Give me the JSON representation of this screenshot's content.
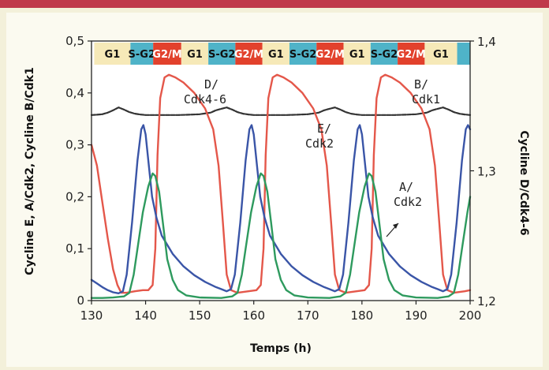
{
  "chart_data": {
    "type": "line",
    "xlabel": "Temps (h)",
    "ylabel_left": "Cycline E, A/Cdk2, Cycline B/Cdk1",
    "ylabel_right": "Cycline D/Cdk4-6",
    "xlim": [
      130,
      200
    ],
    "ylim_left": [
      0,
      0.5
    ],
    "ylim_right": [
      1.2,
      1.4
    ],
    "x_ticks": [
      "130",
      "140",
      "150",
      "160",
      "170",
      "180",
      "190",
      "200"
    ],
    "y_ticks_left": [
      "0",
      "0,1",
      "0,2",
      "0,3",
      "0,4",
      "0,5"
    ],
    "y_ticks_right": [
      "1,2",
      "1,3",
      "1,4"
    ],
    "phases": [
      {
        "label": "G1",
        "start": 130.5,
        "end": 137.2,
        "color": "#f6e9b8",
        "text_color": "#111111"
      },
      {
        "label": "S-G2",
        "start": 137.2,
        "end": 141.4,
        "color": "#4fb3c8",
        "text_color": "#111111"
      },
      {
        "label": "G2/M",
        "start": 141.4,
        "end": 146.6,
        "color": "#e2412c",
        "text_color": "#ffffff"
      },
      {
        "label": "G1",
        "start": 146.6,
        "end": 151.6,
        "color": "#f6e9b8",
        "text_color": "#111111"
      },
      {
        "label": "S-G2",
        "start": 151.6,
        "end": 156.6,
        "color": "#4fb3c8",
        "text_color": "#111111"
      },
      {
        "label": "G2/M",
        "start": 156.6,
        "end": 161.6,
        "color": "#e2412c",
        "text_color": "#ffffff"
      },
      {
        "label": "G1",
        "start": 161.6,
        "end": 166.6,
        "color": "#f6e9b8",
        "text_color": "#111111"
      },
      {
        "label": "S-G2",
        "start": 166.6,
        "end": 171.6,
        "color": "#4fb3c8",
        "text_color": "#111111"
      },
      {
        "label": "G2/M",
        "start": 171.6,
        "end": 176.6,
        "color": "#e2412c",
        "text_color": "#ffffff"
      },
      {
        "label": "G1",
        "start": 176.6,
        "end": 181.6,
        "color": "#f6e9b8",
        "text_color": "#111111"
      },
      {
        "label": "S-G2",
        "start": 181.6,
        "end": 186.6,
        "color": "#4fb3c8",
        "text_color": "#111111"
      },
      {
        "label": "G2/M",
        "start": 186.6,
        "end": 191.6,
        "color": "#e2412c",
        "text_color": "#ffffff"
      },
      {
        "label": "G1",
        "start": 191.6,
        "end": 197.6,
        "color": "#f6e9b8",
        "text_color": "#111111"
      },
      {
        "label": "",
        "start": 197.6,
        "end": 200,
        "color": "#4fb3c8",
        "text_color": "#111111"
      }
    ],
    "annotations": [
      {
        "lines": [
          "D/",
          "Cdk4-6"
        ]
      },
      {
        "lines": [
          "E/",
          "Cdk2"
        ]
      },
      {
        "lines": [
          "B/",
          "Cdk1"
        ]
      },
      {
        "lines": [
          "A/",
          "Cdk2"
        ]
      }
    ],
    "series": [
      {
        "name": "Cycline D/Cdk4-6",
        "axis": "right",
        "color": "#333333",
        "points": [
          [
            130,
            1.343
          ],
          [
            131,
            1.3432
          ],
          [
            132,
            1.3436
          ],
          [
            133,
            1.3448
          ],
          [
            134,
            1.3466
          ],
          [
            135,
            1.3488
          ],
          [
            136,
            1.3472
          ],
          [
            137,
            1.3452
          ],
          [
            138,
            1.344
          ],
          [
            139,
            1.3434
          ],
          [
            140,
            1.343
          ],
          [
            142,
            1.343
          ],
          [
            144,
            1.343
          ],
          [
            146,
            1.343
          ],
          [
            148,
            1.3432
          ],
          [
            150,
            1.3436
          ],
          [
            152,
            1.3448
          ],
          [
            153,
            1.3466
          ],
          [
            154,
            1.3478
          ],
          [
            155,
            1.3488
          ],
          [
            156,
            1.3472
          ],
          [
            157,
            1.3452
          ],
          [
            158,
            1.344
          ],
          [
            159,
            1.3434
          ],
          [
            160,
            1.343
          ],
          [
            164,
            1.343
          ],
          [
            166,
            1.343
          ],
          [
            168,
            1.3432
          ],
          [
            170,
            1.3436
          ],
          [
            172,
            1.3448
          ],
          [
            173,
            1.3466
          ],
          [
            174,
            1.3478
          ],
          [
            175,
            1.3488
          ],
          [
            176,
            1.3472
          ],
          [
            177,
            1.3452
          ],
          [
            178,
            1.344
          ],
          [
            179,
            1.3434
          ],
          [
            180,
            1.343
          ],
          [
            184,
            1.343
          ],
          [
            186,
            1.343
          ],
          [
            188,
            1.3432
          ],
          [
            190,
            1.3436
          ],
          [
            192,
            1.3448
          ],
          [
            193,
            1.3466
          ],
          [
            194,
            1.3478
          ],
          [
            195,
            1.3488
          ],
          [
            196,
            1.3472
          ],
          [
            197,
            1.3452
          ],
          [
            198,
            1.344
          ],
          [
            199,
            1.3434
          ],
          [
            200,
            1.343
          ]
        ]
      },
      {
        "name": "Cycline B/Cdk1",
        "axis": "left",
        "color": "#e4574a",
        "points": [
          [
            130,
            0.3
          ],
          [
            131,
            0.26
          ],
          [
            132,
            0.19
          ],
          [
            133,
            0.12
          ],
          [
            134,
            0.06
          ],
          [
            134.8,
            0.03
          ],
          [
            135.5,
            0.015
          ],
          [
            136.5,
            0.015
          ],
          [
            138,
            0.018
          ],
          [
            139.5,
            0.02
          ],
          [
            140.5,
            0.02
          ],
          [
            141.3,
            0.03
          ],
          [
            141.8,
            0.1
          ],
          [
            142.2,
            0.28
          ],
          [
            142.7,
            0.39
          ],
          [
            143.5,
            0.43
          ],
          [
            144.3,
            0.435
          ],
          [
            145.5,
            0.43
          ],
          [
            147,
            0.42
          ],
          [
            149,
            0.4
          ],
          [
            151,
            0.37
          ],
          [
            152.5,
            0.33
          ],
          [
            153.5,
            0.26
          ],
          [
            154.3,
            0.15
          ],
          [
            155,
            0.05
          ],
          [
            155.8,
            0.02
          ],
          [
            157,
            0.015
          ],
          [
            159,
            0.018
          ],
          [
            160.5,
            0.02
          ],
          [
            161.3,
            0.03
          ],
          [
            161.8,
            0.1
          ],
          [
            162.2,
            0.28
          ],
          [
            162.7,
            0.39
          ],
          [
            163.5,
            0.43
          ],
          [
            164.3,
            0.435
          ],
          [
            165.5,
            0.43
          ],
          [
            167,
            0.42
          ],
          [
            169,
            0.4
          ],
          [
            171,
            0.37
          ],
          [
            172.5,
            0.33
          ],
          [
            173.5,
            0.26
          ],
          [
            174.3,
            0.15
          ],
          [
            175,
            0.05
          ],
          [
            175.8,
            0.02
          ],
          [
            177,
            0.015
          ],
          [
            179,
            0.018
          ],
          [
            180.5,
            0.02
          ],
          [
            181.3,
            0.03
          ],
          [
            181.8,
            0.1
          ],
          [
            182.2,
            0.28
          ],
          [
            182.7,
            0.39
          ],
          [
            183.5,
            0.43
          ],
          [
            184.3,
            0.435
          ],
          [
            185.5,
            0.43
          ],
          [
            187,
            0.42
          ],
          [
            189,
            0.4
          ],
          [
            191,
            0.37
          ],
          [
            192.5,
            0.33
          ],
          [
            193.5,
            0.26
          ],
          [
            194.3,
            0.15
          ],
          [
            195,
            0.05
          ],
          [
            195.8,
            0.02
          ],
          [
            197,
            0.015
          ],
          [
            199,
            0.018
          ],
          [
            200,
            0.02
          ]
        ]
      },
      {
        "name": "Cycline E/Cdk2",
        "axis": "left",
        "color": "#3a55a7",
        "points": [
          [
            130,
            0.04
          ],
          [
            131,
            0.033
          ],
          [
            132,
            0.026
          ],
          [
            133,
            0.02
          ],
          [
            134,
            0.016
          ],
          [
            135,
            0.014
          ],
          [
            135.8,
            0.018
          ],
          [
            136.5,
            0.05
          ],
          [
            137.5,
            0.15
          ],
          [
            138.5,
            0.27
          ],
          [
            139.2,
            0.33
          ],
          [
            139.6,
            0.338
          ],
          [
            140,
            0.32
          ],
          [
            140.5,
            0.27
          ],
          [
            141.2,
            0.2
          ],
          [
            142,
            0.16
          ],
          [
            143,
            0.125
          ],
          [
            145,
            0.09
          ],
          [
            147,
            0.066
          ],
          [
            149,
            0.049
          ],
          [
            151,
            0.036
          ],
          [
            153,
            0.026
          ],
          [
            154,
            0.022
          ],
          [
            155,
            0.018
          ],
          [
            155.8,
            0.022
          ],
          [
            156.5,
            0.05
          ],
          [
            157.5,
            0.15
          ],
          [
            158.5,
            0.27
          ],
          [
            159.2,
            0.33
          ],
          [
            159.6,
            0.338
          ],
          [
            160,
            0.32
          ],
          [
            160.5,
            0.27
          ],
          [
            161.2,
            0.2
          ],
          [
            162,
            0.16
          ],
          [
            163,
            0.125
          ],
          [
            165,
            0.09
          ],
          [
            167,
            0.066
          ],
          [
            169,
            0.049
          ],
          [
            171,
            0.036
          ],
          [
            173,
            0.026
          ],
          [
            174,
            0.022
          ],
          [
            175,
            0.018
          ],
          [
            175.8,
            0.022
          ],
          [
            176.5,
            0.05
          ],
          [
            177.5,
            0.15
          ],
          [
            178.5,
            0.27
          ],
          [
            179.2,
            0.33
          ],
          [
            179.6,
            0.338
          ],
          [
            180,
            0.32
          ],
          [
            180.5,
            0.27
          ],
          [
            181.2,
            0.2
          ],
          [
            182,
            0.16
          ],
          [
            183,
            0.125
          ],
          [
            185,
            0.09
          ],
          [
            187,
            0.066
          ],
          [
            189,
            0.049
          ],
          [
            191,
            0.036
          ],
          [
            193,
            0.026
          ],
          [
            194,
            0.022
          ],
          [
            195,
            0.018
          ],
          [
            195.8,
            0.022
          ],
          [
            196.5,
            0.05
          ],
          [
            197.5,
            0.15
          ],
          [
            198.5,
            0.27
          ],
          [
            199.2,
            0.33
          ],
          [
            199.6,
            0.338
          ],
          [
            200,
            0.33
          ]
        ]
      },
      {
        "name": "Cycline A/Cdk2",
        "axis": "left",
        "color": "#2e9a5e",
        "points": [
          [
            130,
            0.005
          ],
          [
            132,
            0.005
          ],
          [
            134,
            0.006
          ],
          [
            136,
            0.008
          ],
          [
            137,
            0.015
          ],
          [
            137.8,
            0.05
          ],
          [
            138.5,
            0.1
          ],
          [
            139.5,
            0.17
          ],
          [
            140.5,
            0.22
          ],
          [
            141.3,
            0.245
          ],
          [
            141.8,
            0.24
          ],
          [
            142.5,
            0.21
          ],
          [
            143.2,
            0.15
          ],
          [
            144,
            0.08
          ],
          [
            145,
            0.04
          ],
          [
            146,
            0.02
          ],
          [
            147.5,
            0.01
          ],
          [
            150,
            0.006
          ],
          [
            154,
            0.005
          ],
          [
            156,
            0.008
          ],
          [
            157,
            0.015
          ],
          [
            157.8,
            0.05
          ],
          [
            158.5,
            0.1
          ],
          [
            159.5,
            0.17
          ],
          [
            160.5,
            0.22
          ],
          [
            161.3,
            0.245
          ],
          [
            161.8,
            0.24
          ],
          [
            162.5,
            0.21
          ],
          [
            163.2,
            0.15
          ],
          [
            164,
            0.08
          ],
          [
            165,
            0.04
          ],
          [
            166,
            0.02
          ],
          [
            167.5,
            0.01
          ],
          [
            170,
            0.006
          ],
          [
            174,
            0.005
          ],
          [
            176,
            0.008
          ],
          [
            177,
            0.015
          ],
          [
            177.8,
            0.05
          ],
          [
            178.5,
            0.1
          ],
          [
            179.5,
            0.17
          ],
          [
            180.5,
            0.22
          ],
          [
            181.3,
            0.245
          ],
          [
            181.8,
            0.24
          ],
          [
            182.5,
            0.21
          ],
          [
            183.2,
            0.15
          ],
          [
            184,
            0.08
          ],
          [
            185,
            0.04
          ],
          [
            186,
            0.02
          ],
          [
            187.5,
            0.01
          ],
          [
            190,
            0.006
          ],
          [
            194,
            0.005
          ],
          [
            196,
            0.008
          ],
          [
            197,
            0.015
          ],
          [
            197.8,
            0.05
          ],
          [
            198.5,
            0.1
          ],
          [
            199.5,
            0.17
          ],
          [
            200,
            0.2
          ]
        ]
      }
    ]
  }
}
